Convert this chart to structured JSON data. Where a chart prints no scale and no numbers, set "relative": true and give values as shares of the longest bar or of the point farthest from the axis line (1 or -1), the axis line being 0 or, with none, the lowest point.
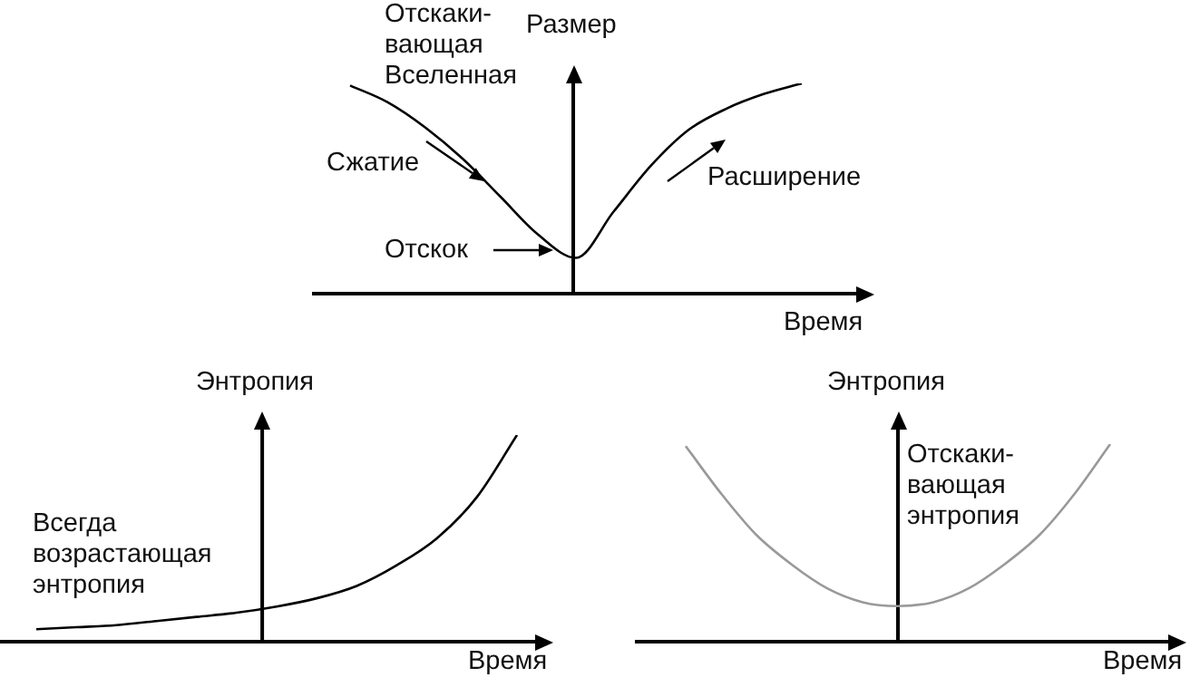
{
  "chart_data": [
    {
      "type": "line",
      "relative": true,
      "ylabel": "Размер",
      "xlabel": "Время",
      "categories": [
        null,
        null,
        null,
        null,
        null,
        null,
        null,
        null,
        null,
        null,
        null,
        null,
        null
      ],
      "series": [
        {
          "color": "#000000",
          "values": [
            0.99,
            0.91,
            0.79,
            0.64,
            0.46,
            0.28,
            0.17,
            0.39,
            0.61,
            0.78,
            0.88,
            0.95,
            1.0
          ]
        }
      ],
      "annotations": [
        "Отскаки-\nвающая\nВселенная",
        "Сжатие",
        "Отскок",
        "Расширение"
      ]
    },
    {
      "type": "line",
      "relative": true,
      "ylabel": "Энтропия",
      "xlabel": "Время",
      "categories": [
        null,
        null,
        null,
        null,
        null,
        null,
        null,
        null,
        null,
        null,
        null,
        null,
        null
      ],
      "series": [
        {
          "color": "#000000",
          "values": [
            0.06,
            0.07,
            0.08,
            0.1,
            0.12,
            0.14,
            0.17,
            0.21,
            0.27,
            0.37,
            0.5,
            0.7,
            1.0
          ]
        }
      ],
      "annotations": [
        "Всегда\nвозрастающая\nэнтропия"
      ]
    },
    {
      "type": "line",
      "relative": true,
      "ylabel": "Энтропия",
      "xlabel": "Время",
      "categories": [
        null,
        null,
        null,
        null,
        null,
        null,
        null,
        null,
        null,
        null,
        null,
        null,
        null
      ],
      "series": [
        {
          "color": "#999999",
          "values": [
            0.99,
            0.75,
            0.54,
            0.39,
            0.27,
            0.2,
            0.18,
            0.2,
            0.27,
            0.39,
            0.54,
            0.75,
            1.0
          ]
        }
      ],
      "annotations": [
        "Отскаки-\nвающая\nэнтропия"
      ]
    }
  ]
}
